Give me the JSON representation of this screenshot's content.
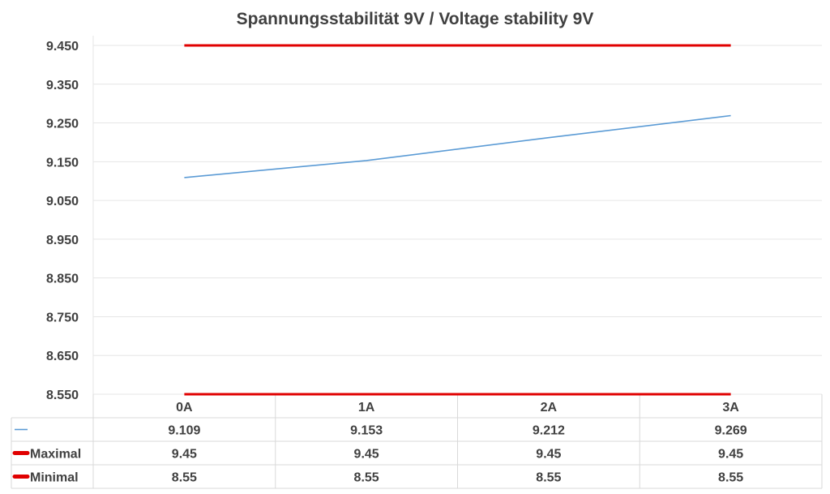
{
  "chart_data": {
    "type": "line",
    "title": "Spannungsstabilität 9V / Voltage stability 9V",
    "categories": [
      "0A",
      "1A",
      "2A",
      "3A"
    ],
    "y_ticks": [
      "9.450",
      "9.350",
      "9.250",
      "9.150",
      "9.050",
      "8.950",
      "8.850",
      "8.750",
      "8.650",
      "8.550"
    ],
    "ylim": [
      8.55,
      9.45
    ],
    "grid": true,
    "legend": "data-table",
    "series": [
      {
        "name": "",
        "color": "#5b9bd5",
        "values": [
          9.109,
          9.153,
          9.212,
          9.269
        ],
        "labels": [
          "9.109",
          "9.153",
          "9.212",
          "9.269"
        ]
      },
      {
        "name": "Maximal",
        "color": "#e00000",
        "values": [
          9.45,
          9.45,
          9.45,
          9.45
        ],
        "labels": [
          "9.45",
          "9.45",
          "9.45",
          "9.45"
        ]
      },
      {
        "name": "Minimal",
        "color": "#e00000",
        "values": [
          8.55,
          8.55,
          8.55,
          8.55
        ],
        "labels": [
          "8.55",
          "8.55",
          "8.55",
          "8.55"
        ]
      }
    ]
  }
}
